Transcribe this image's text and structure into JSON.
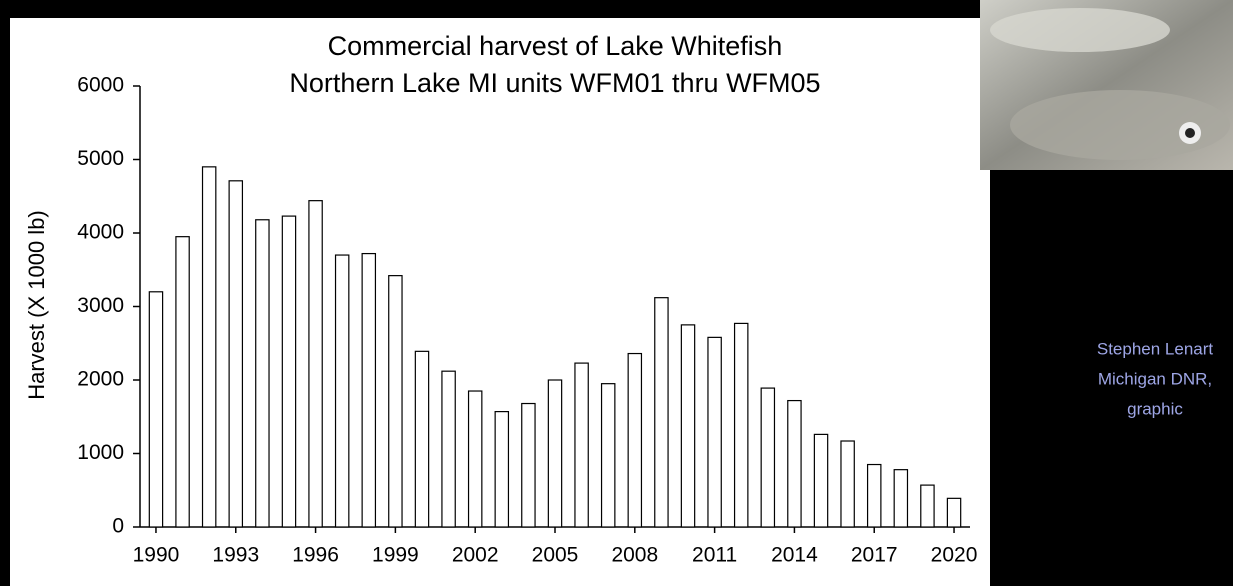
{
  "chart_data": {
    "type": "bar",
    "title": [
      "Commercial harvest of Lake Whitefish",
      "Northern Lake MI units WFM01 thru WFM05"
    ],
    "y_label": "Harvest (X 1000 lb)",
    "x": [
      1990,
      1991,
      1992,
      1993,
      1994,
      1995,
      1996,
      1997,
      1998,
      1999,
      2000,
      2001,
      2002,
      2003,
      2004,
      2005,
      2006,
      2007,
      2008,
      2009,
      2010,
      2011,
      2012,
      2013,
      2014,
      2015,
      2016,
      2017,
      2018,
      2019,
      2020
    ],
    "values": [
      3200,
      3950,
      4900,
      4710,
      4180,
      4230,
      4440,
      3700,
      3720,
      3420,
      2390,
      2120,
      1850,
      1570,
      1680,
      2000,
      2230,
      1950,
      2360,
      3120,
      2750,
      2580,
      2770,
      1890,
      1720,
      1260,
      1170,
      850,
      780,
      570,
      390
    ],
    "color": "#ffffff",
    "xlim": [
      1989.4,
      2020.6
    ],
    "xticks": [
      1990,
      1993,
      1996,
      1999,
      2002,
      2005,
      2008,
      2011,
      2014,
      2017,
      2020
    ],
    "ylim": [
      0,
      6000
    ],
    "yticks": [
      0,
      1000,
      2000,
      3000,
      4000,
      5000,
      6000
    ],
    "grid": false,
    "annotations": [
      "Stephen Lenart",
      "Michigan DNR,",
      "graphic"
    ]
  }
}
